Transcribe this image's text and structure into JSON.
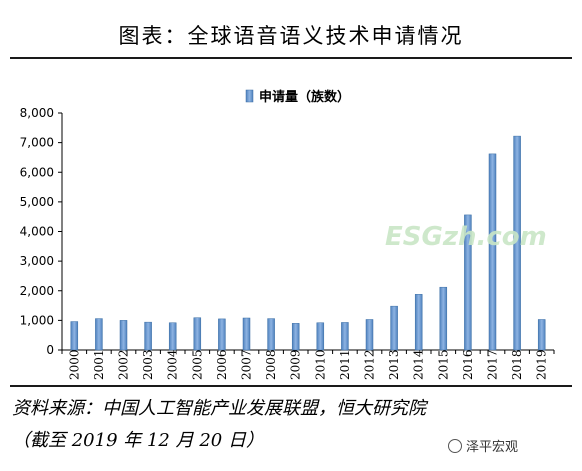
{
  "title": "图表：全球语音语义技术申请情况",
  "source_line1": "资料来源：中国人工智能产业发展联盟，恒大研究院",
  "source_line2": "（截至 2019 年 12 月 20 日）",
  "watermark": "ESGzh.com",
  "badge_text": "泽平宏观",
  "colors": {
    "bar": "#4f81bd",
    "bar_light": "#8eb4e3",
    "axis": "#000000"
  },
  "chart_data": {
    "type": "bar",
    "categories": [
      "2000",
      "2001",
      "2002",
      "2003",
      "2004",
      "2005",
      "2006",
      "2007",
      "2008",
      "2009",
      "2010",
      "2011",
      "2012",
      "2013",
      "2014",
      "2015",
      "2016",
      "2017",
      "2018",
      "2019"
    ],
    "series": [
      {
        "name": "申请量（族数）",
        "values": [
          960,
          1060,
          1000,
          940,
          920,
          1090,
          1050,
          1080,
          1060,
          900,
          920,
          930,
          1030,
          1480,
          1880,
          2120,
          4560,
          6620,
          7220,
          1030
        ]
      }
    ],
    "yticks": [
      "0",
      "1,000",
      "2,000",
      "3,000",
      "4,000",
      "5,000",
      "6,000",
      "7,000",
      "8,000"
    ],
    "ylim": [
      0,
      8000
    ],
    "legend": "top-center",
    "grid": false
  }
}
